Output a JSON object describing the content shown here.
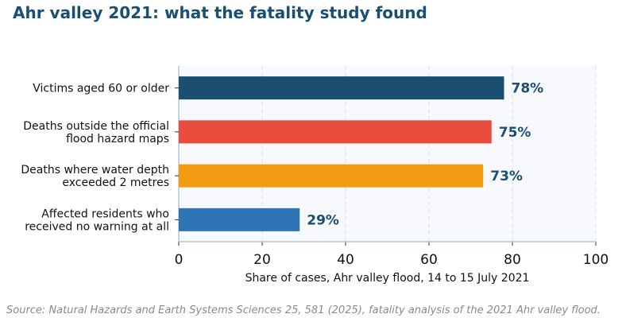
{
  "title": "Ahr valley 2021: what the fatality study found",
  "source": "Source: Natural Hazards and Earth Systems Sciences 25, 581 (2025), fatality analysis of the 2021 Ahr valley flood.",
  "colors": {
    "title": "#1b4f72",
    "value_label": "#1b4f72",
    "plot_bg": "#f7f9fc",
    "axis": "#b0c4de",
    "grid": "#dde3ec",
    "source": "#8a8a8a"
  },
  "chart_data": {
    "type": "bar",
    "orientation": "horizontal",
    "categories": [
      [
        "Victims aged 60 or older"
      ],
      [
        "Deaths outside the official",
        "flood hazard maps"
      ],
      [
        "Deaths where water depth",
        "exceeded 2 metres"
      ],
      [
        "Affected residents who",
        "received no warning at all"
      ]
    ],
    "values": [
      78,
      75,
      73,
      29
    ],
    "value_labels": [
      "78%",
      "75%",
      "73%",
      "29%"
    ],
    "bar_colors": [
      "#1b4f72",
      "#e74c3c",
      "#f39c12",
      "#2e75b6"
    ],
    "xlabel": "Share of cases, Ahr valley flood, 14 to 15 July 2021",
    "xlim": [
      0,
      100
    ],
    "xticks": [
      0,
      20,
      40,
      60,
      80,
      100
    ],
    "grid": true
  }
}
